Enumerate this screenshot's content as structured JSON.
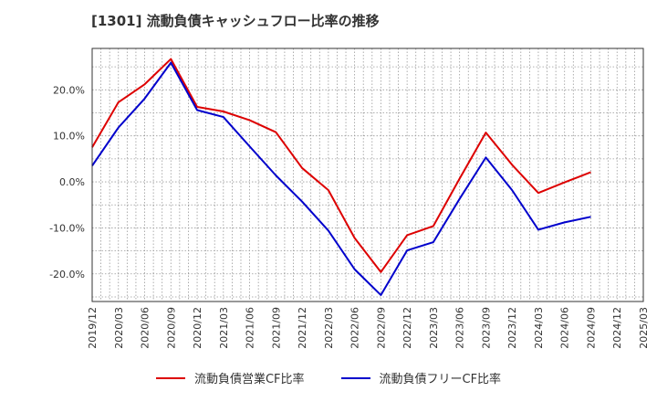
{
  "chart_data": {
    "type": "line",
    "title": "[1301]  流動負債キャッシュフロー比率の推移",
    "x": [
      "2019/12",
      "2020/03",
      "2020/06",
      "2020/09",
      "2020/12",
      "2021/03",
      "2021/06",
      "2021/09",
      "2021/12",
      "2022/03",
      "2022/06",
      "2022/09",
      "2022/12",
      "2023/03",
      "2023/06",
      "2023/09",
      "2023/12",
      "2024/03",
      "2024/06",
      "2024/09",
      "2024/12",
      "2025/03"
    ],
    "series": [
      {
        "name": "流動負債営業CF比率",
        "color": "#dd0000",
        "values": [
          7.5,
          17.3,
          21.2,
          26.7,
          16.3,
          15.3,
          13.4,
          10.8,
          3.0,
          -1.8,
          -12.2,
          -19.6,
          -11.6,
          -9.6,
          0.7,
          10.7,
          3.7,
          -2.4,
          -0.1,
          2.1,
          null,
          null
        ]
      },
      {
        "name": "流動負債フリーCF比率",
        "color": "#0000cc",
        "values": [
          3.5,
          11.8,
          18.1,
          25.9,
          15.6,
          14.1,
          7.7,
          1.4,
          -4.3,
          -10.6,
          -19.0,
          -24.6,
          -14.9,
          -13.1,
          -3.7,
          5.3,
          -1.8,
          -10.4,
          -8.8,
          -7.6,
          null,
          null
        ]
      }
    ],
    "ylim": [
      -26,
      29
    ],
    "yticks": [
      -20,
      -10,
      0,
      10,
      20
    ],
    "ytick_labels": [
      "-20.0%",
      "-10.0%",
      "0.0%",
      "10.0%",
      "20.0%"
    ],
    "grid": true,
    "legend_position": "bottom"
  }
}
